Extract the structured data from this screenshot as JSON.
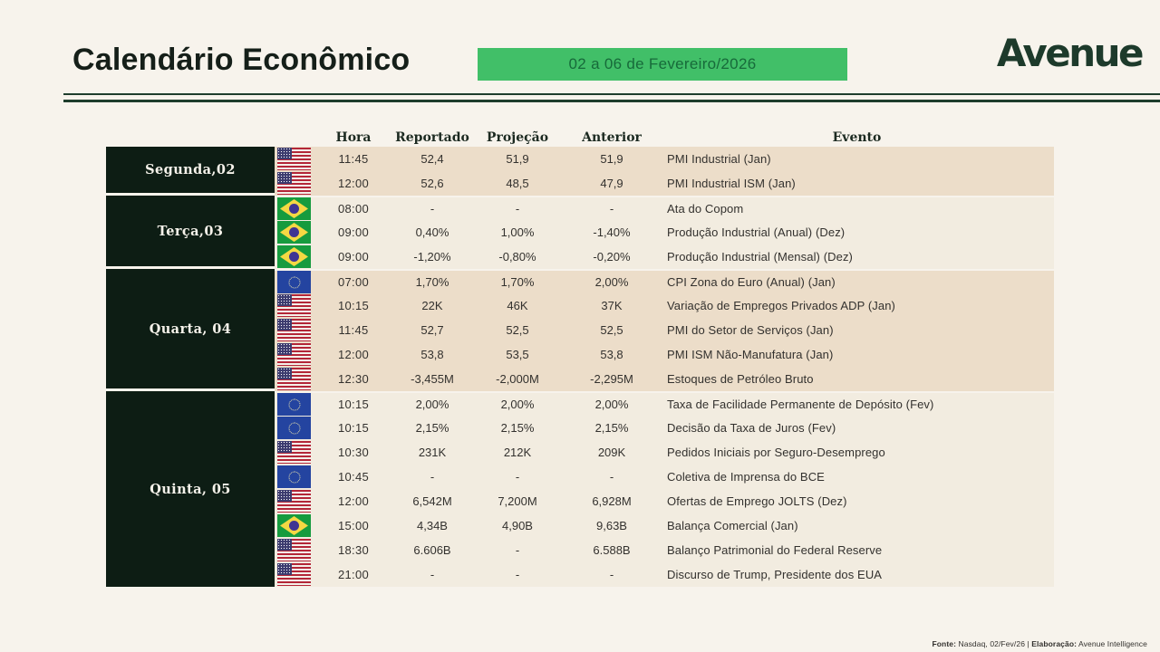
{
  "header": {
    "title": "Calendário Econômico",
    "period_badge": "02 a 06 de Fevereiro/2026",
    "logo": "Avenue"
  },
  "colors": {
    "background": "#f7f3ec",
    "badge_green": "#41bf68",
    "badge_text_green": "#176a3a",
    "day_block_dark": "#0d1d14",
    "row_beige": "#ecddc9",
    "row_light": "#f2ece0",
    "divider_green": "#1e3d2c",
    "logo_green": "#1d3a2b"
  },
  "table": {
    "columns": {
      "hora": "Hora",
      "reportado": "Reportado",
      "projecao": "Projeção",
      "anterior": "Anterior",
      "evento": "Evento"
    },
    "day_groups": [
      {
        "label": "Segunda,02",
        "rows": [
          {
            "flag": "us",
            "hora": "11:45",
            "reportado": "52,4",
            "projecao": "51,9",
            "anterior": "51,9",
            "evento": "PMI Industrial (Jan)"
          },
          {
            "flag": "us",
            "hora": "12:00",
            "reportado": "52,6",
            "projecao": "48,5",
            "anterior": "47,9",
            "evento": "PMI Industrial ISM (Jan)"
          }
        ]
      },
      {
        "label": "Terça,03",
        "rows": [
          {
            "flag": "brazil",
            "hora": "08:00",
            "reportado": "-",
            "projecao": "-",
            "anterior": "-",
            "evento": "Ata do Copom"
          },
          {
            "flag": "brazil",
            "hora": "09:00",
            "reportado": "0,40%",
            "projecao": "1,00%",
            "anterior": "-1,40%",
            "evento": "Produção Industrial (Anual) (Dez)"
          },
          {
            "flag": "brazil",
            "hora": "09:00",
            "reportado": "-1,20%",
            "projecao": "-0,80%",
            "anterior": "-0,20%",
            "evento": "Produção Industrial (Mensal) (Dez)"
          }
        ]
      },
      {
        "label": "Quarta, 04",
        "rows": [
          {
            "flag": "eu",
            "hora": "07:00",
            "reportado": "1,70%",
            "projecao": "1,70%",
            "anterior": "2,00%",
            "evento": "CPI Zona do Euro (Anual) (Jan)"
          },
          {
            "flag": "us",
            "hora": "10:15",
            "reportado": "22K",
            "projecao": "46K",
            "anterior": "37K",
            "evento": "Variação de Empregos Privados ADP (Jan)"
          },
          {
            "flag": "us",
            "hora": "11:45",
            "reportado": "52,7",
            "projecao": "52,5",
            "anterior": "52,5",
            "evento": "PMI do Setor de Serviços (Jan)"
          },
          {
            "flag": "us",
            "hora": "12:00",
            "reportado": "53,8",
            "projecao": "53,5",
            "anterior": "53,8",
            "evento": "PMI ISM Não-Manufatura (Jan)"
          },
          {
            "flag": "us",
            "hora": "12:30",
            "reportado": "-3,455M",
            "projecao": "-2,000M",
            "anterior": "-2,295M",
            "evento": "Estoques de Petróleo Bruto"
          }
        ]
      },
      {
        "label": "Quinta, 05",
        "rows": [
          {
            "flag": "eu",
            "hora": "10:15",
            "reportado": "2,00%",
            "projecao": "2,00%",
            "anterior": "2,00%",
            "evento": "Taxa de Facilidade Permanente de Depósito (Fev)"
          },
          {
            "flag": "eu",
            "hora": "10:15",
            "reportado": "2,15%",
            "projecao": "2,15%",
            "anterior": "2,15%",
            "evento": "Decisão da Taxa de Juros (Fev)"
          },
          {
            "flag": "us",
            "hora": "10:30",
            "reportado": "231K",
            "projecao": "212K",
            "anterior": "209K",
            "evento": "Pedidos Iniciais por Seguro-Desemprego"
          },
          {
            "flag": "eu",
            "hora": "10:45",
            "reportado": "-",
            "projecao": "-",
            "anterior": "-",
            "evento": "Coletiva de Imprensa do BCE"
          },
          {
            "flag": "us",
            "hora": "12:00",
            "reportado": "6,542M",
            "projecao": "7,200M",
            "anterior": "6,928M",
            "evento": "Ofertas de Emprego JOLTS (Dez)"
          },
          {
            "flag": "brazil",
            "hora": "15:00",
            "reportado": "4,34B",
            "projecao": "4,90B",
            "anterior": "9,63B",
            "evento": "Balança Comercial (Jan)"
          },
          {
            "flag": "us",
            "hora": "18:30",
            "reportado": "6.606B",
            "projecao": "-",
            "anterior": "6.588B",
            "evento": "Balanço Patrimonial do Federal Reserve"
          },
          {
            "flag": "us",
            "hora": "21:00",
            "reportado": "-",
            "projecao": "-",
            "anterior": "-",
            "evento": "Discurso de Trump, Presidente dos EUA"
          }
        ]
      }
    ]
  },
  "footer": {
    "fonte_label": "Fonte:",
    "fonte_value": "Nasdaq, 02/Fev/26",
    "separator": "|",
    "elaboracao_label": "Elaboração:",
    "elaboracao_value": "Avenue Intelligence"
  }
}
